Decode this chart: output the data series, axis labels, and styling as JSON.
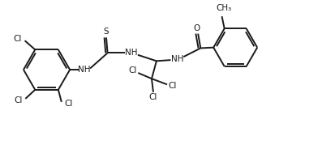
{
  "bg_color": "#ffffff",
  "line_color": "#1a1a1a",
  "line_width": 1.4,
  "font_size": 7.5,
  "fig_w": 3.97,
  "fig_h": 1.84,
  "xlim": [
    0,
    10
  ],
  "ylim": [
    0,
    4.6
  ]
}
